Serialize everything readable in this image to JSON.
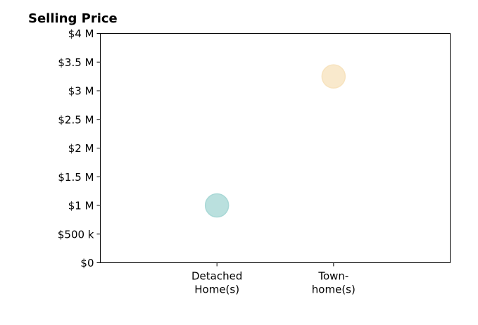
{
  "chart_data": {
    "type": "scatter",
    "title": "Selling Price",
    "xlabel": "",
    "ylabel": "",
    "categories": [
      [
        "Detached",
        "Home(s)"
      ],
      [
        "Town-",
        "home(s)"
      ]
    ],
    "series": [
      {
        "values": [
          1.0,
          3.25
        ],
        "colors": [
          "#a9d8d6",
          "#f7e3bf"
        ]
      }
    ],
    "ylim": [
      0,
      4
    ],
    "y_ticks": [
      0,
      0.5,
      1,
      1.5,
      2,
      2.5,
      3,
      3.5,
      4
    ],
    "y_tick_labels": [
      "$0",
      "$500 k",
      "$1 M",
      "$1.5 M",
      "$2 M",
      "$2.5 M",
      "$3 M",
      "$3.5 M",
      "$4 M"
    ],
    "grid": false,
    "legend": "none"
  }
}
